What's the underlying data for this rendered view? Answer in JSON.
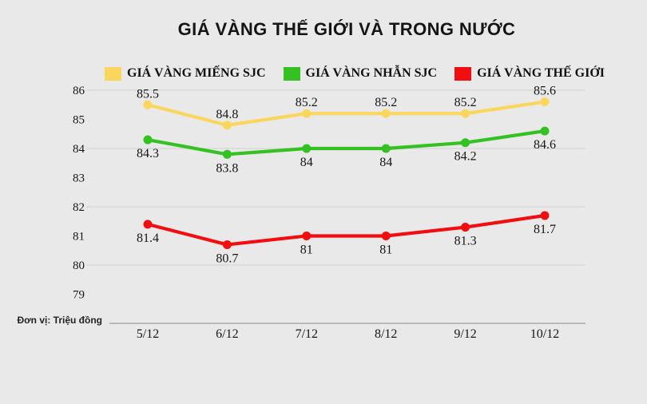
{
  "chart_data": {
    "type": "line",
    "title": "GIÁ VÀNG THẾ GIỚI VÀ TRONG NƯỚC",
    "unit_label": "Đơn vị: Triệu đồng",
    "categories": [
      "5/12",
      "6/12",
      "7/12",
      "8/12",
      "9/12",
      "10/12"
    ],
    "series": [
      {
        "name": "GIÁ VÀNG MIẾNG SJC",
        "color": "#FAD65C",
        "values": [
          85.5,
          84.8,
          85.2,
          85.2,
          85.2,
          85.6
        ],
        "label_position": "above"
      },
      {
        "name": "GIÁ VÀNG NHẪN SJC",
        "color": "#33C222",
        "values": [
          84.3,
          83.8,
          84,
          84,
          84.2,
          84.6
        ],
        "label_position": "below"
      },
      {
        "name": "GIÁ VÀNG THẾ GIỚI",
        "color": "#F20D10",
        "values": [
          81.4,
          80.7,
          81,
          81,
          81.3,
          81.7
        ],
        "label_position": "below"
      }
    ],
    "y_ticks": [
      86,
      85,
      84,
      83,
      82,
      81,
      80,
      79
    ],
    "gridline_values": [
      86,
      84,
      82,
      80
    ],
    "ylim": [
      78,
      86.3
    ],
    "grid": "horizontal",
    "legend_position": "top",
    "colors": {
      "background": "#E9E9E9",
      "gridline": "#D9D9D9",
      "axis_line": "#A8A8A8",
      "text": "#161616"
    }
  }
}
